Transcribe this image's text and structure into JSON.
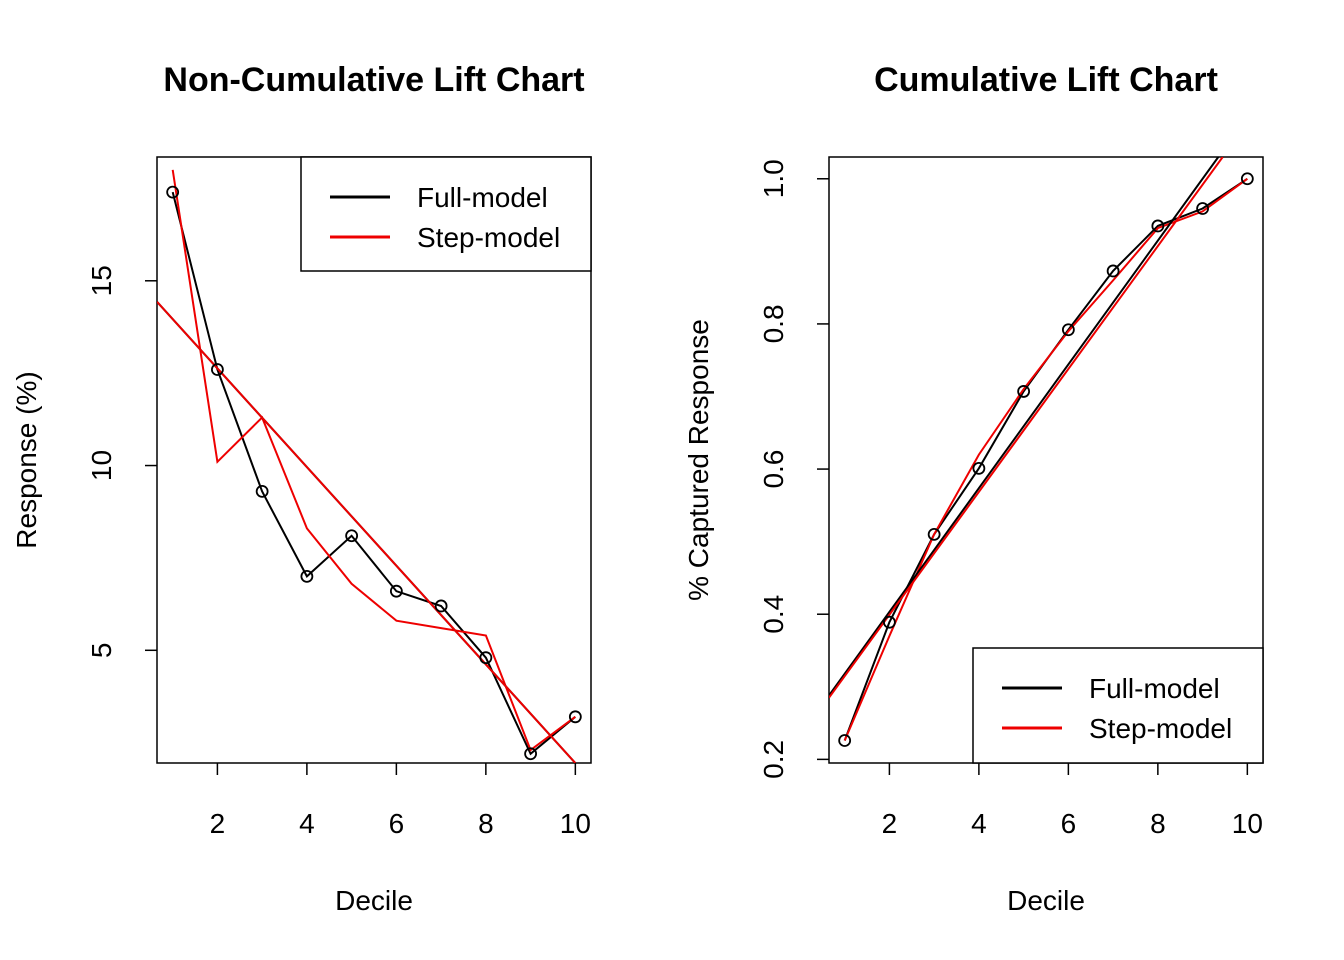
{
  "chart_data": [
    {
      "type": "line",
      "title": "Non-Cumulative Lift Chart",
      "xlabel": "Decile",
      "ylabel": "Response (%)",
      "xlim": [
        0.65,
        10.35
      ],
      "ylim": [
        1.95,
        18.35
      ],
      "xticks": [
        2,
        4,
        6,
        8,
        10
      ],
      "yticks": [
        5,
        10,
        15
      ],
      "legend_position": "top-right",
      "legend": [
        {
          "name": "Full-model",
          "color": "#000000"
        },
        {
          "name": "Step-model",
          "color": "#ee0000"
        }
      ],
      "series": [
        {
          "name": "Full-model",
          "color": "#000000",
          "markers": true,
          "x": [
            1,
            2,
            3,
            4,
            5,
            6,
            7,
            8,
            9,
            10
          ],
          "y": [
            17.4,
            12.6,
            9.3,
            7.0,
            8.1,
            6.6,
            6.2,
            4.8,
            2.2,
            3.2
          ]
        },
        {
          "name": "Step-model",
          "color": "#ee0000",
          "markers": false,
          "x": [
            1,
            2,
            3,
            4,
            5,
            6,
            7,
            8,
            9,
            10
          ],
          "y": [
            18.0,
            10.1,
            11.3,
            8.3,
            6.8,
            5.8,
            5.6,
            5.4,
            2.3,
            3.2
          ]
        },
        {
          "name": "Full-model trend",
          "color": "#000000",
          "markers": false,
          "x": [
            0.65,
            10.0
          ],
          "y": [
            14.43,
            1.95
          ]
        },
        {
          "name": "Step-model trend",
          "color": "#ee0000",
          "markers": false,
          "x": [
            0.65,
            10.0
          ],
          "y": [
            14.43,
            1.95
          ]
        }
      ]
    },
    {
      "type": "line",
      "title": "Cumulative Lift Chart",
      "xlabel": "Decile",
      "ylabel": "% Captured Response",
      "xlim": [
        0.65,
        10.35
      ],
      "ylim": [
        0.195,
        1.03
      ],
      "xticks": [
        2,
        4,
        6,
        8,
        10
      ],
      "yticks": [
        0.2,
        0.4,
        0.6,
        0.8,
        1.0
      ],
      "ytick_labels": [
        "0.2",
        "0.4",
        "0.6",
        "0.8",
        "1.0"
      ],
      "legend_position": "bottom-right",
      "legend": [
        {
          "name": "Full-model",
          "color": "#000000"
        },
        {
          "name": "Step-model",
          "color": "#ee0000"
        }
      ],
      "series": [
        {
          "name": "Full-model",
          "color": "#000000",
          "markers": true,
          "x": [
            1,
            2,
            3,
            4,
            5,
            6,
            7,
            8,
            9,
            10
          ],
          "y": [
            0.226,
            0.389,
            0.51,
            0.601,
            0.707,
            0.792,
            0.873,
            0.935,
            0.959,
            1.0
          ]
        },
        {
          "name": "Step-model",
          "color": "#ee0000",
          "markers": false,
          "x": [
            1,
            2,
            3,
            4,
            5,
            6,
            7,
            8,
            9,
            10
          ],
          "y": [
            0.226,
            0.37,
            0.51,
            0.62,
            0.71,
            0.79,
            0.86,
            0.932,
            0.955,
            1.0
          ]
        },
        {
          "name": "Full-model trend",
          "color": "#000000",
          "markers": false,
          "x": [
            0.65,
            9.35
          ],
          "y": [
            0.288,
            1.03
          ]
        },
        {
          "name": "Step-model trend",
          "color": "#ee0000",
          "markers": false,
          "x": [
            0.65,
            9.45
          ],
          "y": [
            0.285,
            1.03
          ]
        }
      ]
    }
  ]
}
